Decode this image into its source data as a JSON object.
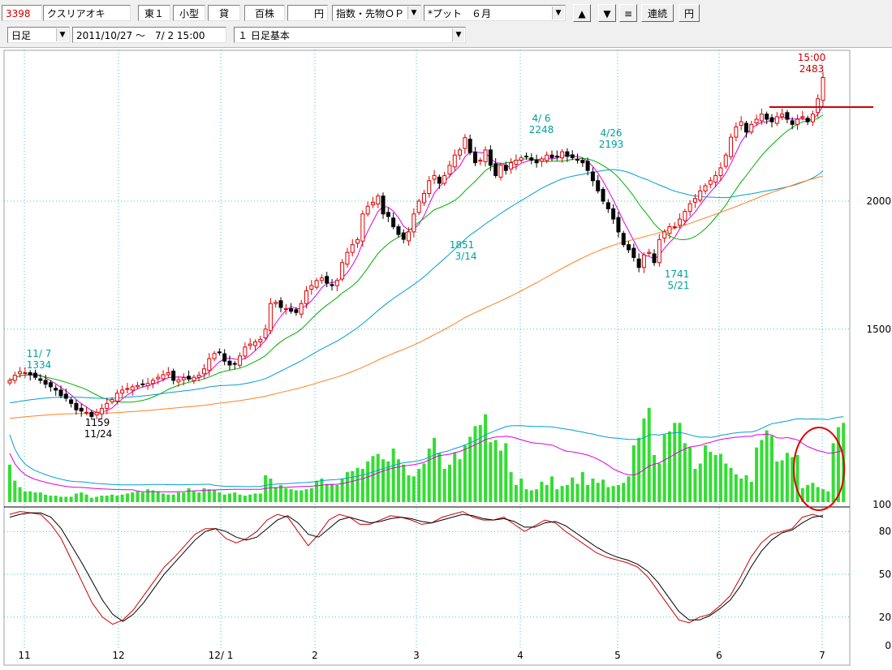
{
  "toolbar": {
    "code": "3398",
    "name": "クスリアオキ",
    "market": "東１",
    "size": "小型",
    "lending": "貸",
    "unit": "百株",
    "currency": "円",
    "index_select": "指数・先物ＯＰ",
    "option_select": "*プット　６月",
    "btn_up": "▲",
    "btn_down": "▼",
    "btn_menu": "≡",
    "btn_continuous": "連続",
    "btn_yen": "円",
    "period_select": "日足",
    "date_range": "2011/10/27 ～　7/ 2 15:00",
    "style_select": "１ 日足基本"
  },
  "colors": {
    "up_candle": "#e00000",
    "down_candle": "#000000",
    "ma1": "#e000e0",
    "ma2": "#00b000",
    "ma3": "#00a0d0",
    "ma4": "#ff8020",
    "volume": "#33dd33",
    "stoch_k": "#cc0000",
    "stoch_d": "#000000",
    "annotation": "#00a0a0",
    "grid": "#40c0c0"
  },
  "annotations": {
    "last_time": "15:00",
    "last_price": "2483",
    "peak1_date": "4/ 6",
    "peak1_price": "2248",
    "peak2_date": "4/26",
    "peak2_price": "2193",
    "trough1_price": "1851",
    "trough1_date": "3/14",
    "trough2_price": "1741",
    "trough2_date": "5/21",
    "start_date": "11/ 7",
    "start_price": "1334",
    "low_price": "1159",
    "low_date": "11/24"
  },
  "chart_data": {
    "type": "candlestick",
    "price_axis_ticks": [
      "2000",
      "1500"
    ],
    "volume_axis_ticks": [
      "100"
    ],
    "stoch_axis_ticks": [
      "80",
      "50",
      "20",
      "0"
    ],
    "x_tick_labels": [
      "11",
      "12",
      "12/ 1",
      "2",
      "3",
      "4",
      "5",
      "6",
      "7"
    ],
    "price_range": [
      1100,
      2600
    ],
    "series": [
      {
        "name": "close",
        "values": [
          1300,
          1320,
          1334,
          1330,
          1322,
          1312,
          1300,
          1285,
          1275,
          1262,
          1240,
          1230,
          1210,
          1185,
          1180,
          1175,
          1159,
          1175,
          1190,
          1210,
          1225,
          1250,
          1262,
          1268,
          1275,
          1280,
          1285,
          1288,
          1300,
          1312,
          1322,
          1330,
          1300,
          1302,
          1310,
          1305,
          1312,
          1320,
          1345,
          1385,
          1405,
          1410,
          1375,
          1360,
          1365,
          1395,
          1430,
          1442,
          1450,
          1460,
          1500,
          1600,
          1605,
          1585,
          1580,
          1570,
          1565,
          1600,
          1650,
          1670,
          1690,
          1700,
          1680,
          1670,
          1690,
          1760,
          1800,
          1830,
          1850,
          1950,
          1980,
          1995,
          2020,
          1950,
          1940,
          1900,
          1870,
          1851,
          1880,
          1950,
          2000,
          2030,
          2080,
          2100,
          2070,
          2100,
          2140,
          2180,
          2200,
          2248,
          2190,
          2150,
          2160,
          2200,
          2140,
          2100,
          2140,
          2120,
          2150,
          2160,
          2170,
          2175,
          2160,
          2150,
          2165,
          2180,
          2170,
          2175,
          2193,
          2175,
          2170,
          2160,
          2150,
          2120,
          2080,
          2040,
          2000,
          1970,
          1930,
          1880,
          1830,
          1810,
          1780,
          1741,
          1790,
          1800,
          1760,
          1850,
          1880,
          1900,
          1900,
          1930,
          1960,
          1990,
          2010,
          2040,
          2060,
          2080,
          2100,
          2130,
          2180,
          2250,
          2290,
          2310,
          2270,
          2300,
          2320,
          2340,
          2320,
          2310,
          2330,
          2340,
          2320,
          2300,
          2320,
          2330,
          2310,
          2340,
          2400,
          2483
        ]
      },
      {
        "name": "volume",
        "values": [
          35,
          20,
          14,
          10,
          10,
          9,
          9,
          7,
          6,
          6,
          5,
          5,
          5,
          8,
          9,
          7,
          4,
          5,
          6,
          6,
          7,
          6,
          7,
          8,
          9,
          10,
          9,
          12,
          11,
          10,
          8,
          7,
          7,
          9,
          9,
          13,
          10,
          9,
          13,
          12,
          11,
          9,
          7,
          8,
          9,
          7,
          6,
          7,
          8,
          8,
          25,
          22,
          14,
          16,
          13,
          12,
          11,
          11,
          12,
          13,
          20,
          22,
          17,
          17,
          16,
          22,
          28,
          29,
          32,
          31,
          38,
          43,
          45,
          40,
          38,
          50,
          40,
          35,
          25,
          24,
          31,
          36,
          50,
          60,
          46,
          31,
          35,
          46,
          40,
          53,
          61,
          71,
          72,
          82,
          56,
          58,
          48,
          55,
          28,
          16,
          22,
          12,
          11,
          12,
          19,
          16,
          24,
          12,
          15,
          16,
          23,
          17,
          28,
          16,
          22,
          18,
          21,
          14,
          15,
          16,
          18,
          24,
          53,
          60,
          78,
          88,
          44,
          36,
          63,
          66,
          74,
          74,
          55,
          51,
          31,
          36,
          53,
          47,
          44,
          45,
          36,
          32,
          26,
          22,
          25,
          19,
          51,
          58,
          67,
          62,
          38,
          39,
          46,
          42,
          44,
          13,
          16,
          18,
          14,
          12,
          10,
          55,
          70,
          74
        ]
      },
      {
        "name": "stoch_k",
        "values": [
          92,
          94,
          93,
          92,
          85,
          75,
          60,
          45,
          30,
          20,
          15,
          18,
          25,
          35,
          45,
          55,
          62,
          70,
          78,
          82,
          82,
          75,
          72,
          75,
          80,
          88,
          92,
          90,
          80,
          70,
          78,
          88,
          92,
          90,
          85,
          85,
          88,
          91,
          90,
          88,
          85,
          86,
          90,
          92,
          94,
          90,
          88,
          88,
          90,
          85,
          80,
          84,
          88,
          86,
          80,
          75,
          70,
          65,
          62,
          60,
          58,
          55,
          48,
          38,
          28,
          18,
          16,
          20,
          22,
          28,
          35,
          48,
          62,
          72,
          78,
          80,
          82,
          90,
          92,
          90
        ]
      },
      {
        "name": "stoch_d",
        "values": [
          90,
          92,
          93,
          93,
          90,
          82,
          70,
          58,
          45,
          32,
          22,
          17,
          22,
          30,
          40,
          50,
          58,
          66,
          74,
          80,
          82,
          80,
          76,
          74,
          76,
          82,
          88,
          91,
          86,
          78,
          76,
          82,
          88,
          90,
          88,
          86,
          87,
          89,
          90,
          89,
          87,
          86,
          88,
          90,
          92,
          91,
          89,
          88,
          89,
          87,
          83,
          83,
          86,
          87,
          84,
          79,
          74,
          69,
          65,
          62,
          60,
          57,
          52,
          44,
          34,
          24,
          18,
          18,
          21,
          26,
          32,
          42,
          55,
          66,
          74,
          79,
          81,
          86,
          90,
          91
        ]
      }
    ]
  }
}
